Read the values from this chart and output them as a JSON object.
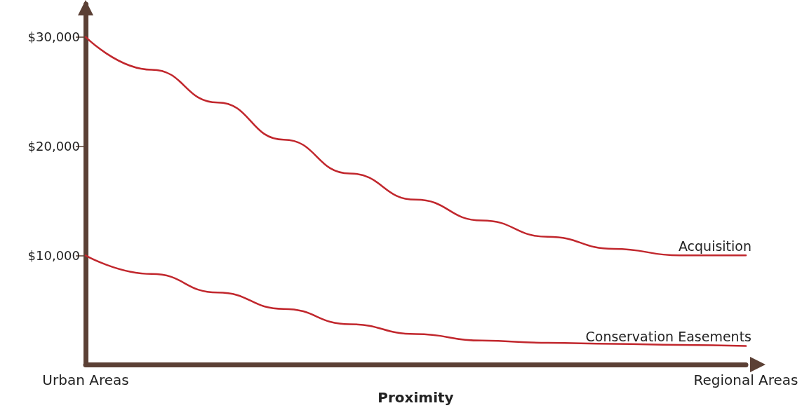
{
  "chart_data": {
    "type": "line",
    "xlabel": "Proximity",
    "categories": [
      "Urban Areas",
      null,
      null,
      null,
      null,
      null,
      null,
      null,
      null,
      null,
      "Regional Areas"
    ],
    "series": [
      {
        "name": "Acquisition",
        "color": "#c1272d",
        "values": [
          30000,
          27000,
          24000,
          20600,
          17500,
          15100,
          13200,
          11700,
          10600,
          10000,
          10000
        ]
      },
      {
        "name": "Conservation Easements",
        "color": "#c1272d",
        "values": [
          10000,
          8300,
          6600,
          5100,
          3700,
          2800,
          2200,
          2000,
          1900,
          1800,
          1700
        ]
      }
    ],
    "ylim": [
      0,
      33000
    ],
    "yticks": [
      {
        "value": 10000,
        "label": "$10,000"
      },
      {
        "value": 20000,
        "label": "$20,000"
      },
      {
        "value": 30000,
        "label": "$30,000"
      }
    ],
    "grid": false,
    "legend": false,
    "marker": "none",
    "line_style": "solid"
  }
}
